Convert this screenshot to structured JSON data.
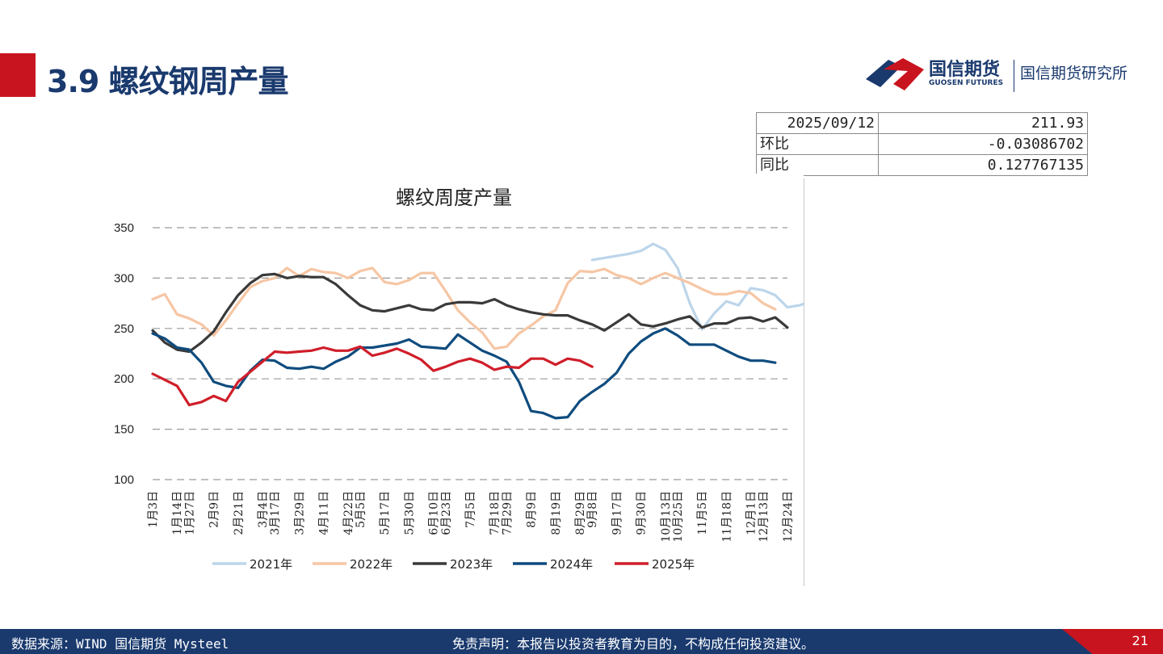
{
  "header": {
    "title": "3.9 螺纹钢周产量"
  },
  "logo": {
    "cn": "国信期货",
    "en": "GUOSEN FUTURES",
    "sub": "国信期货研究所"
  },
  "info_table": {
    "date": "2025/09/12",
    "value": "211.93",
    "row2_label": "环比",
    "row2_value": "-0.03086702",
    "row3_label": "同比",
    "row3_value": "0.127767135"
  },
  "footer": {
    "source": "数据来源：WIND 国信期货 Mysteel",
    "disclaimer": "免责声明：本报告以投资者教育为目的，不构成任何投资建议。",
    "page": "21"
  },
  "chart_data": {
    "type": "line",
    "title": "螺纹周度产量",
    "xlabel": "",
    "ylabel": "",
    "ylim": [
      100,
      350
    ],
    "yticks": [
      "350",
      "300",
      "250",
      "200",
      "150",
      "100"
    ],
    "grid": "horizontal-dashed",
    "legend_position": "bottom",
    "x_tick_labels": [
      "1月3日",
      "1月14日",
      "1月27日",
      "2月9日",
      "2月21日",
      "3月4日",
      "3月17日",
      "3月29日",
      "4月11日",
      "4月22日",
      "5月5日",
      "5月17日",
      "5月30日",
      "6月10日",
      "6月23日",
      "7月5日",
      "7月18日",
      "7月29日",
      "8月9日",
      "8月19日",
      "8月29日",
      "9月8日",
      "9月17日",
      "9月30日",
      "10月13日",
      "10月25日",
      "11月5日",
      "11月18日",
      "12月1日",
      "12月13日",
      "12月24日"
    ],
    "colors": {
      "2021年": "#bcd5ea",
      "2022年": "#f6c6a4",
      "2023年": "#3a3a3a",
      "2024年": "#0f4c7e",
      "2025年": "#d01e2a"
    },
    "series": [
      {
        "name": "2021年",
        "start": 36,
        "values": [
          318,
          320,
          322,
          324,
          327,
          334,
          328,
          310,
          275,
          249,
          265,
          277,
          273,
          290,
          288,
          283,
          271,
          273,
          277,
          275,
          274,
          265,
          270
        ]
      },
      {
        "name": "2022年",
        "start": 0,
        "values": [
          279,
          284,
          264,
          260,
          254,
          243,
          258,
          275,
          291,
          297,
          300,
          310,
          302,
          309,
          306,
          305,
          300,
          307,
          310,
          296,
          294,
          298,
          305,
          305,
          287,
          268,
          256,
          246,
          230,
          232,
          245,
          253,
          262,
          268,
          295,
          307,
          306,
          309,
          303,
          300,
          294,
          300,
          305,
          300,
          295,
          289,
          284,
          284,
          287,
          285,
          275,
          269
        ]
      },
      {
        "name": "2023年",
        "start": 0,
        "values": [
          248,
          236,
          229,
          227,
          236,
          247,
          266,
          283,
          295,
          303,
          304,
          300,
          302,
          301,
          301,
          294,
          283,
          273,
          268,
          267,
          270,
          273,
          269,
          268,
          274,
          276,
          276,
          275,
          279,
          273,
          269,
          266,
          264,
          263,
          263,
          258,
          254,
          248,
          256,
          264,
          254,
          252,
          255,
          259,
          262,
          251,
          255,
          255,
          260,
          261,
          257,
          261,
          251
        ]
      },
      {
        "name": "2024年",
        "start": 0,
        "values": [
          245,
          240,
          231,
          229,
          216,
          197,
          193,
          191,
          208,
          219,
          218,
          211,
          210,
          212,
          210,
          217,
          222,
          231,
          231,
          233,
          235,
          239,
          232,
          231,
          230,
          244,
          236,
          228,
          223,
          217,
          197,
          168,
          166,
          161,
          162,
          178,
          187,
          195,
          206,
          225,
          237,
          245,
          250,
          243,
          234,
          234,
          234,
          228,
          222,
          218,
          218,
          216
        ]
      },
      {
        "name": "2025年",
        "start": 0,
        "values": [
          205,
          199,
          193,
          174,
          177,
          183,
          178,
          197,
          207,
          217,
          227,
          226,
          227,
          228,
          231,
          228,
          228,
          232,
          223,
          226,
          230,
          225,
          219,
          208,
          212,
          217,
          220,
          216,
          209,
          212,
          211,
          220,
          220,
          214,
          220,
          218,
          212
        ]
      }
    ]
  }
}
